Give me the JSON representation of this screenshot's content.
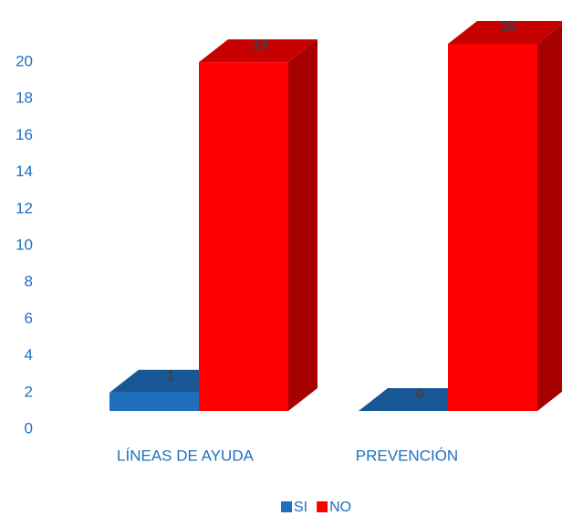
{
  "chart_data": {
    "type": "bar3d",
    "categories": [
      "LÍNEAS DE AYUDA",
      "PREVENCIÓN"
    ],
    "series": [
      {
        "name": "SI",
        "color": "#1f6fbf",
        "values": [
          1,
          0
        ]
      },
      {
        "name": "NO",
        "color": "#ff0000",
        "values": [
          19,
          20
        ]
      }
    ],
    "ylim": [
      0,
      20
    ],
    "yticks": [
      0,
      2,
      4,
      6,
      8,
      10,
      12,
      14,
      16,
      18,
      20
    ],
    "grid": false,
    "legend": "bottom"
  }
}
